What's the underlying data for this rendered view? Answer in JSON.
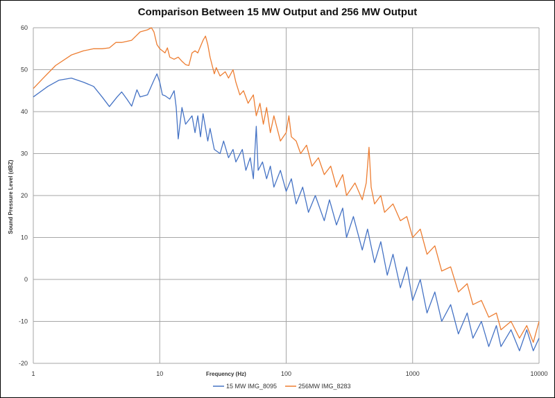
{
  "chart_data": {
    "type": "line",
    "title": "Comparison Between 15 MW Output and 256 MW Output",
    "xlabel": "Frequency (Hz)",
    "ylabel": "Sound Pressure Level (dBZ)",
    "xscale": "log",
    "xlim": [
      1,
      10000
    ],
    "ylim": [
      -20,
      60
    ],
    "xticks": [
      "1",
      "10",
      "100",
      "1000",
      "10000"
    ],
    "yticks": [
      "-20",
      "-10",
      "0",
      "10",
      "20",
      "30",
      "40",
      "50",
      "60"
    ],
    "grid": true,
    "legend": "bottom",
    "series": [
      {
        "name": "15 MW IMG_8095",
        "color": "#4472c4",
        "points": [
          [
            1,
            43.5
          ],
          [
            1.3,
            46
          ],
          [
            1.6,
            47.5
          ],
          [
            2,
            48
          ],
          [
            2.5,
            47
          ],
          [
            3,
            46
          ],
          [
            3.5,
            43.5
          ],
          [
            4,
            41.2
          ],
          [
            4.6,
            43.5
          ],
          [
            5,
            44.7
          ],
          [
            5.5,
            43
          ],
          [
            6,
            41.3
          ],
          [
            6.6,
            45.2
          ],
          [
            7,
            43.5
          ],
          [
            8,
            44
          ],
          [
            9,
            47.5
          ],
          [
            9.5,
            49
          ],
          [
            10,
            47
          ],
          [
            10.5,
            44
          ],
          [
            11,
            43.8
          ],
          [
            12,
            43
          ],
          [
            13,
            45
          ],
          [
            13.5,
            41
          ],
          [
            14,
            33.5
          ],
          [
            15,
            41
          ],
          [
            16,
            37
          ],
          [
            17,
            38
          ],
          [
            18,
            39
          ],
          [
            19,
            35
          ],
          [
            20,
            39
          ],
          [
            21,
            34
          ],
          [
            22,
            39.5
          ],
          [
            24,
            33
          ],
          [
            25,
            36
          ],
          [
            27,
            31
          ],
          [
            30,
            30
          ],
          [
            32,
            33
          ],
          [
            35,
            29
          ],
          [
            38,
            31
          ],
          [
            40,
            28
          ],
          [
            45,
            31
          ],
          [
            48,
            26
          ],
          [
            52,
            29
          ],
          [
            55,
            24
          ],
          [
            58,
            36.5
          ],
          [
            60,
            26
          ],
          [
            65,
            28
          ],
          [
            70,
            24
          ],
          [
            75,
            27
          ],
          [
            80,
            22
          ],
          [
            90,
            26
          ],
          [
            100,
            21
          ],
          [
            110,
            24
          ],
          [
            120,
            18
          ],
          [
            135,
            22
          ],
          [
            150,
            16
          ],
          [
            170,
            20
          ],
          [
            200,
            14
          ],
          [
            220,
            19
          ],
          [
            250,
            13
          ],
          [
            280,
            17
          ],
          [
            300,
            10
          ],
          [
            340,
            15
          ],
          [
            400,
            7
          ],
          [
            440,
            12
          ],
          [
            500,
            4
          ],
          [
            560,
            9
          ],
          [
            630,
            1
          ],
          [
            700,
            6
          ],
          [
            800,
            -2
          ],
          [
            900,
            3
          ],
          [
            1000,
            -5
          ],
          [
            1150,
            0
          ],
          [
            1300,
            -8
          ],
          [
            1500,
            -3
          ],
          [
            1700,
            -10
          ],
          [
            2000,
            -6
          ],
          [
            2300,
            -13
          ],
          [
            2700,
            -8
          ],
          [
            3000,
            -14
          ],
          [
            3500,
            -10
          ],
          [
            4000,
            -16
          ],
          [
            4600,
            -11
          ],
          [
            5000,
            -16
          ],
          [
            6000,
            -12
          ],
          [
            7000,
            -17
          ],
          [
            8000,
            -12
          ],
          [
            9000,
            -17
          ],
          [
            10000,
            -14
          ]
        ]
      },
      {
        "name": "256MW IMG_8283",
        "color": "#ed7d31",
        "points": [
          [
            1,
            45.5
          ],
          [
            1.2,
            48
          ],
          [
            1.5,
            51
          ],
          [
            2,
            53.5
          ],
          [
            2.5,
            54.5
          ],
          [
            3,
            55
          ],
          [
            3.5,
            55
          ],
          [
            4,
            55.2
          ],
          [
            4.5,
            56.5
          ],
          [
            5,
            56.5
          ],
          [
            6,
            57
          ],
          [
            7,
            59
          ],
          [
            8,
            59.5
          ],
          [
            8.6,
            60
          ],
          [
            9,
            59
          ],
          [
            9.5,
            56
          ],
          [
            10,
            55
          ],
          [
            11,
            54
          ],
          [
            11.5,
            55.2
          ],
          [
            12,
            53
          ],
          [
            13,
            52.5
          ],
          [
            14,
            53
          ],
          [
            15,
            52
          ],
          [
            16,
            51.2
          ],
          [
            17,
            51
          ],
          [
            18,
            54
          ],
          [
            19,
            54.5
          ],
          [
            20,
            54
          ],
          [
            22,
            57
          ],
          [
            23,
            58
          ],
          [
            24,
            56
          ],
          [
            25,
            53
          ],
          [
            27,
            49
          ],
          [
            28,
            50.5
          ],
          [
            30,
            48.5
          ],
          [
            33,
            49.5
          ],
          [
            35,
            48
          ],
          [
            38,
            50
          ],
          [
            40,
            47
          ],
          [
            43,
            44
          ],
          [
            46,
            45
          ],
          [
            50,
            42
          ],
          [
            55,
            44
          ],
          [
            58,
            39
          ],
          [
            62,
            42
          ],
          [
            66,
            37
          ],
          [
            70,
            41
          ],
          [
            75,
            35
          ],
          [
            80,
            39
          ],
          [
            90,
            33
          ],
          [
            100,
            35
          ],
          [
            105,
            39
          ],
          [
            110,
            34
          ],
          [
            120,
            33
          ],
          [
            130,
            30
          ],
          [
            145,
            32
          ],
          [
            160,
            27
          ],
          [
            180,
            29
          ],
          [
            200,
            25
          ],
          [
            225,
            27
          ],
          [
            250,
            22
          ],
          [
            280,
            25
          ],
          [
            300,
            20
          ],
          [
            350,
            23
          ],
          [
            400,
            19
          ],
          [
            430,
            23
          ],
          [
            452,
            31.5
          ],
          [
            470,
            22
          ],
          [
            500,
            18
          ],
          [
            560,
            20
          ],
          [
            600,
            16
          ],
          [
            700,
            18
          ],
          [
            800,
            14
          ],
          [
            900,
            15
          ],
          [
            1000,
            10
          ],
          [
            1150,
            12
          ],
          [
            1300,
            6
          ],
          [
            1500,
            8
          ],
          [
            1700,
            2
          ],
          [
            2000,
            3
          ],
          [
            2300,
            -3
          ],
          [
            2700,
            -1
          ],
          [
            3000,
            -6
          ],
          [
            3500,
            -5
          ],
          [
            4000,
            -9
          ],
          [
            4600,
            -8
          ],
          [
            5000,
            -12
          ],
          [
            6000,
            -10
          ],
          [
            7000,
            -14
          ],
          [
            8000,
            -11
          ],
          [
            9000,
            -15
          ],
          [
            10000,
            -10
          ]
        ]
      }
    ]
  }
}
